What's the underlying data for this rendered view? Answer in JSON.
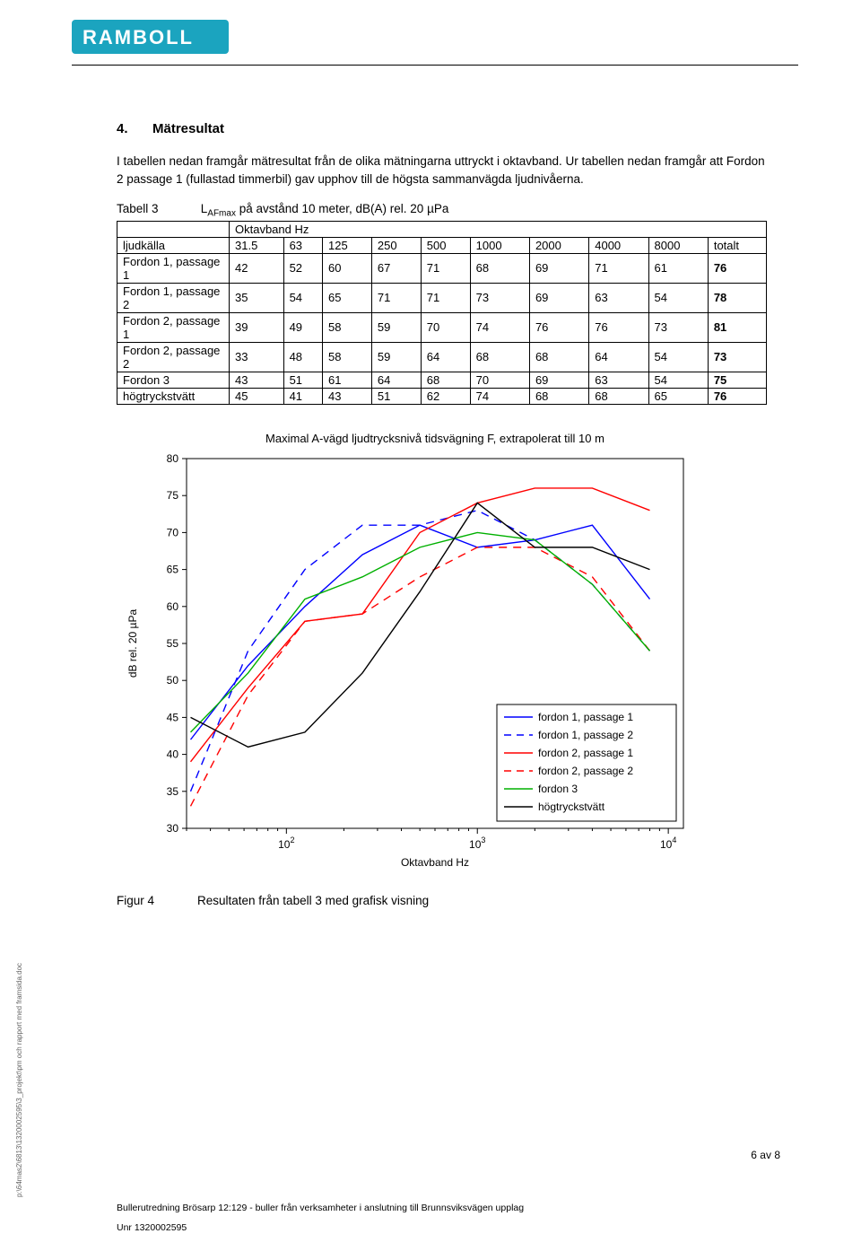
{
  "brand": {
    "name": "RAMBOLL",
    "logo_bg": "#1ba4bf",
    "logo_text": "#ffffff"
  },
  "section": {
    "number": "4.",
    "title": "Mätresultat"
  },
  "para1": "I tabellen nedan framgår mätresultat från de olika mätningarna uttryckt i oktavband. Ur tabellen nedan framgår att Fordon 2 passage 1 (fullastad timmerbil) gav upphov till de högsta sammanvägda ljudnivåerna.",
  "table": {
    "caption_label": "Tabell 3",
    "caption_text_pre": "L",
    "caption_sub": "AFmax",
    "caption_text_post": " på avstånd 10 meter, dB(A) rel. 20 µPa",
    "bandhead": "Oktavband Hz",
    "col_left": "ljudkälla",
    "col_totalt": "totalt",
    "freqs": [
      "31.5",
      "63",
      "125",
      "250",
      "500",
      "1000",
      "2000",
      "4000",
      "8000"
    ],
    "rows": [
      {
        "label": "Fordon 1, passage 1",
        "vals": [
          42,
          52,
          60,
          67,
          71,
          68,
          69,
          71,
          61
        ],
        "tot": 76
      },
      {
        "label": "Fordon 1, passage 2",
        "vals": [
          35,
          54,
          65,
          71,
          71,
          73,
          69,
          63,
          54
        ],
        "tot": 78
      },
      {
        "label": "Fordon 2, passage 1",
        "vals": [
          39,
          49,
          58,
          59,
          70,
          74,
          76,
          76,
          73
        ],
        "tot": 81
      },
      {
        "label": "Fordon 2, passage 2",
        "vals": [
          33,
          48,
          58,
          59,
          64,
          68,
          68,
          64,
          54
        ],
        "tot": 73
      },
      {
        "label": "Fordon 3",
        "vals": [
          43,
          51,
          61,
          64,
          68,
          70,
          69,
          63,
          54
        ],
        "tot": 75
      },
      {
        "label": "högtryckstvätt",
        "vals": [
          45,
          41,
          43,
          51,
          62,
          74,
          68,
          68,
          65
        ],
        "tot": 76
      }
    ]
  },
  "chart": {
    "title": "Maximal A-vägd ljudtrycksnivå tidsvägning F, extrapolerat till 10 m",
    "title_fontsize": 13,
    "xlabel": "Oktavband Hz",
    "ylabel": "dB rel. 20 µPa",
    "label_fontsize": 12,
    "freqs_hz": [
      31.5,
      63,
      125,
      250,
      500,
      1000,
      2000,
      4000,
      8000
    ],
    "ylim": [
      30,
      80
    ],
    "ytick_step": 5,
    "xscale": "log",
    "xlim": [
      30,
      12000
    ],
    "xticks": [
      100,
      1000,
      10000
    ],
    "xtick_labels": [
      "10^2",
      "10^3",
      "10^4"
    ],
    "bg": "#ffffff",
    "axis_color": "#000000",
    "title_color": "#000000",
    "series": [
      {
        "name": "fordon 1, passage 1",
        "color": "#0000ff",
        "dash": "solid",
        "vals": [
          42,
          52,
          60,
          67,
          71,
          68,
          69,
          71,
          61
        ]
      },
      {
        "name": "fordon 1, passage 2",
        "color": "#0000ff",
        "dash": "dashed",
        "vals": [
          35,
          54,
          65,
          71,
          71,
          73,
          69,
          63,
          54
        ]
      },
      {
        "name": "fordon 2, passage 1",
        "color": "#ff0000",
        "dash": "solid",
        "vals": [
          39,
          49,
          58,
          59,
          70,
          74,
          76,
          76,
          73
        ]
      },
      {
        "name": "fordon 2, passage 2",
        "color": "#ff0000",
        "dash": "dashed",
        "vals": [
          33,
          48,
          58,
          59,
          64,
          68,
          68,
          64,
          54
        ]
      },
      {
        "name": "fordon 3",
        "color": "#00b000",
        "dash": "solid",
        "vals": [
          43,
          51,
          61,
          64,
          68,
          70,
          69,
          63,
          54
        ]
      },
      {
        "name": "högtryckstvätt",
        "color": "#000000",
        "dash": "solid",
        "vals": [
          45,
          41,
          43,
          51,
          62,
          74,
          68,
          68,
          65
        ]
      }
    ],
    "line_width": 1.4,
    "legend": {
      "pos": "lower-right",
      "border": "#000000",
      "fontsize": 12
    }
  },
  "figure": {
    "label": "Figur 4",
    "caption": "Resultaten från tabell 3 med grafisk visning"
  },
  "sidetext": "p:\\64mas2\\6813\\1320002595\\3_projekt\\pm och rapport med framsida.doc",
  "footer": {
    "line1": "Bullerutredning Brösarp 12:129 - buller från verksamheter i anslutning till Brunnsviksvägen upplag",
    "line2": "Unr 1320002595"
  },
  "pagenum": "6 av 8"
}
